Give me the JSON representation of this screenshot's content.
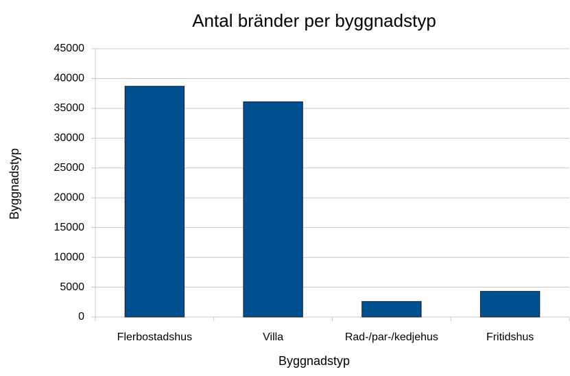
{
  "chart_data": {
    "type": "bar",
    "title": "Antal bränder per byggnadstyp",
    "x_label": "Byggnadstyp",
    "y_label": "Byggnadstyp",
    "categories": [
      "Flerbostadshus",
      "Villa",
      "Rad-/par-/kedjehus",
      "Fritidshus"
    ],
    "values": [
      38700,
      36100,
      2600,
      4300
    ],
    "color": "#01508f",
    "ylim": [
      0,
      45000
    ],
    "yticks": [
      0,
      5000,
      10000,
      15000,
      20000,
      25000,
      30000,
      35000,
      40000,
      45000
    ],
    "grid": true
  }
}
